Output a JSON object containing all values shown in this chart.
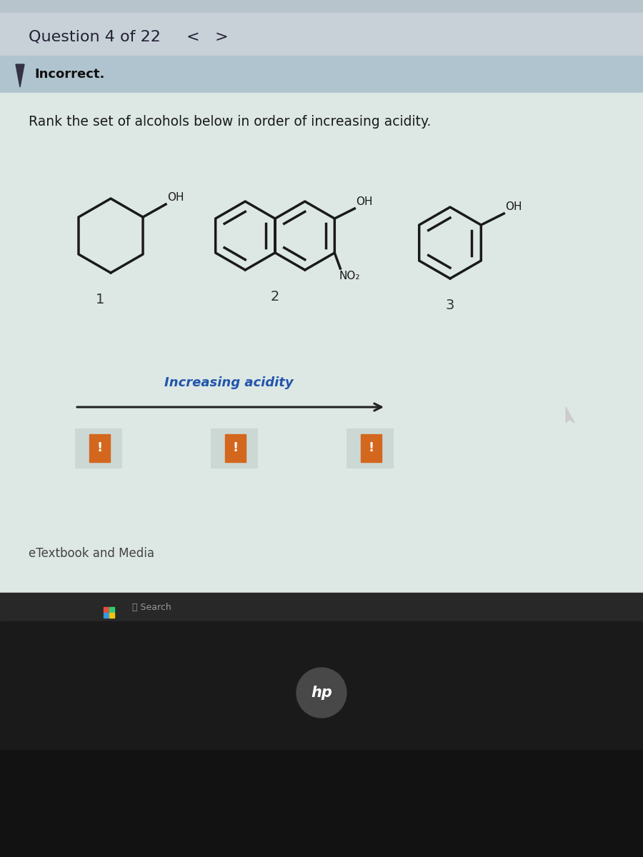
{
  "title": "Question 4 of 22",
  "nav_left": "<",
  "nav_right": ">",
  "incorrect_text": "Incorrect.",
  "question_text": "Rank the set of alcohols below in order of increasing acidity.",
  "mol_label_1": "1",
  "mol_label_2": "2",
  "mol_label_3": "3",
  "oh_label": "OH",
  "no2_label": "NO₂",
  "increasing_acidity_label": "Increasing acidity",
  "etextbook_label": "eTextbook and Media",
  "search_label": "Search",
  "header_bg": "#c8d0d8",
  "incorrect_bg": "#b0c4cf",
  "content_bg": "#dde8e5",
  "taskbar_bg": "#282828",
  "bezel_bg": "#1a1a1a",
  "bezel2_bg": "#121212",
  "mol_color": "#1a1a1a",
  "label_color": "#333333",
  "arrow_color": "#222222",
  "text_color": "#1a1a1a",
  "orange_color": "#d4671e",
  "box_bg": "#dde8e4",
  "box_border": "#aaaaaa",
  "header_text_color": "#222233",
  "incorrect_text_color": "#111111",
  "taskbar_icon_color": "#888888",
  "hp_circle_color": "#505050",
  "win_colors": [
    "#e74c3c",
    "#2ecc71",
    "#3498db",
    "#f1c40f"
  ]
}
